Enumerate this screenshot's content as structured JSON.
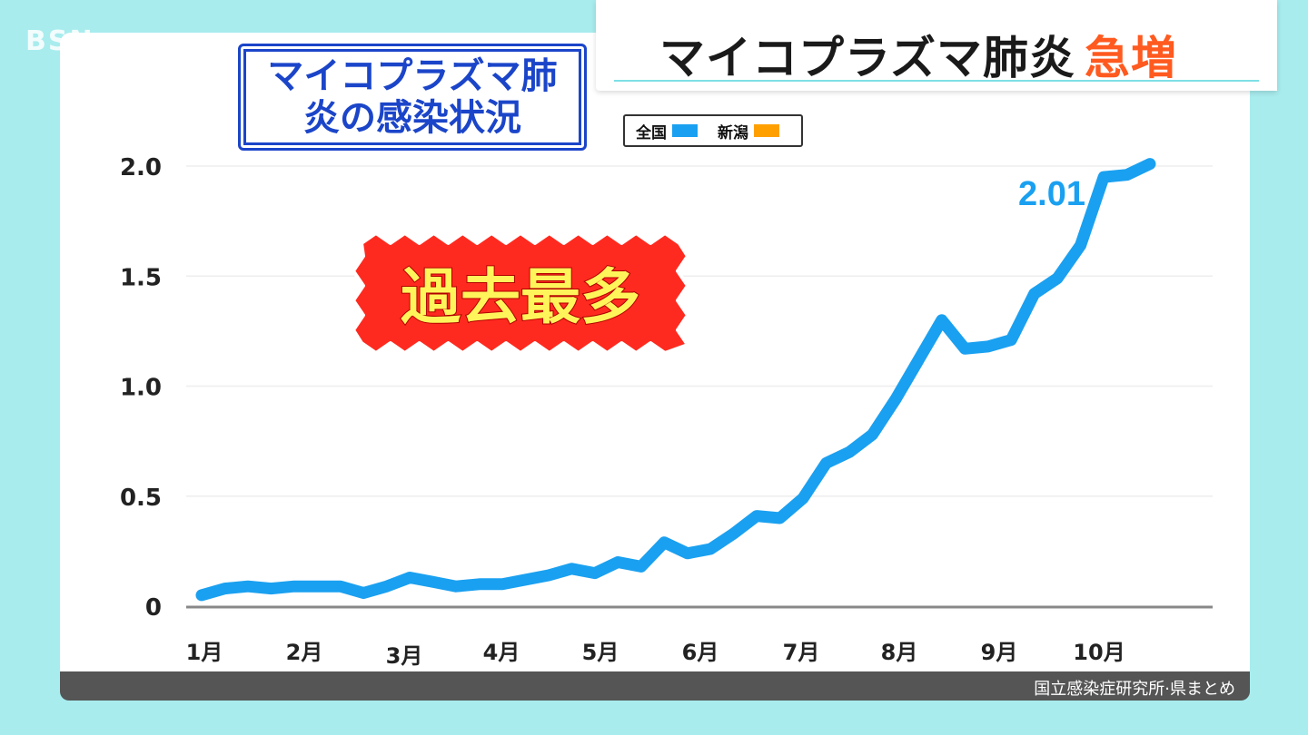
{
  "header": {
    "title": "マイコプラズマ肺炎",
    "title_accent": "急増"
  },
  "subtitle": {
    "line1": "マイコプラズマ肺",
    "line2": "炎の感染状況"
  },
  "legend": {
    "items": [
      {
        "label": "全国",
        "color": "#1aa0f0"
      },
      {
        "label": "新潟",
        "color": "#ffa000"
      }
    ]
  },
  "badge": {
    "text": "過去最多",
    "bg_color": "#ff2a1f",
    "text_color": "#fff55a"
  },
  "source": "国立感染症研究所·県まとめ",
  "logo": "BSN",
  "chart_data": {
    "type": "line",
    "x_labels": [
      "1月",
      "2月",
      "3月",
      "4月",
      "5月",
      "6月",
      "7月",
      "8月",
      "9月",
      "10月"
    ],
    "y_ticks": [
      "0",
      "0.5",
      "1.0",
      "1.5",
      "2.0"
    ],
    "ylim": [
      0,
      2.0
    ],
    "grid": true,
    "legend_position": "top",
    "series": [
      {
        "name": "全国",
        "color": "#1aa0f0",
        "values": [
          0.05,
          0.08,
          0.09,
          0.08,
          0.09,
          0.09,
          0.09,
          0.06,
          0.09,
          0.13,
          0.11,
          0.09,
          0.1,
          0.1,
          0.12,
          0.14,
          0.17,
          0.15,
          0.2,
          0.18,
          0.29,
          0.24,
          0.26,
          0.33,
          0.41,
          0.4,
          0.49,
          0.65,
          0.7,
          0.78,
          0.94,
          1.12,
          1.3,
          1.17,
          1.18,
          1.21,
          1.42,
          1.49,
          1.64,
          1.95,
          1.96,
          2.01
        ]
      }
    ],
    "annotations": [
      {
        "text": "2.01"
      }
    ]
  }
}
